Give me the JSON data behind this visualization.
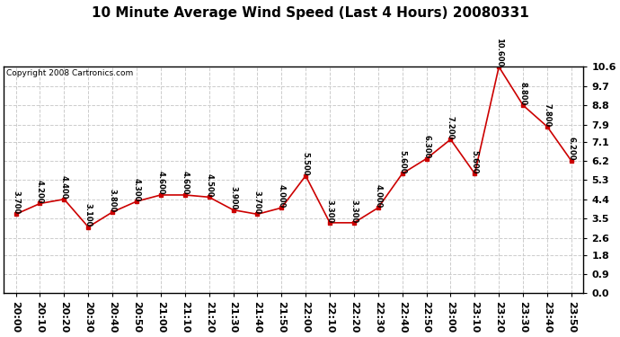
{
  "title": "10 Minute Average Wind Speed (Last 4 Hours) 20080331",
  "copyright": "Copyright 2008 Cartronics.com",
  "x_labels": [
    "20:00",
    "20:10",
    "20:20",
    "20:30",
    "20:40",
    "20:50",
    "21:00",
    "21:10",
    "21:20",
    "21:30",
    "21:40",
    "21:50",
    "22:00",
    "22:10",
    "22:20",
    "22:30",
    "22:40",
    "22:50",
    "23:00",
    "23:10",
    "23:20",
    "23:30",
    "23:40",
    "23:50"
  ],
  "y_values": [
    3.7,
    4.2,
    4.4,
    3.1,
    3.8,
    4.3,
    4.6,
    4.6,
    4.5,
    3.9,
    3.7,
    4.0,
    5.5,
    3.3,
    3.3,
    4.0,
    5.6,
    6.3,
    7.2,
    5.6,
    10.6,
    8.8,
    7.8,
    6.2
  ],
  "point_labels": [
    "3.700",
    "4.200",
    "4.400",
    "3.100",
    "3.800",
    "4.300",
    "4.600",
    "4.600",
    "4.500",
    "3.900",
    "3.700",
    "4.000",
    "5.500",
    "3.300",
    "3.300",
    "4.000",
    "5.600",
    "6.300",
    "7.200",
    "5.600",
    "10.600",
    "8.800",
    "7.800",
    "6.200"
  ],
  "line_color": "#cc0000",
  "marker_color": "#cc0000",
  "bg_color": "#ffffff",
  "grid_color": "#cccccc",
  "ylim": [
    0.0,
    10.6
  ],
  "yticks": [
    0.0,
    0.9,
    1.8,
    2.6,
    3.5,
    4.4,
    5.3,
    6.2,
    7.1,
    7.9,
    8.8,
    9.7,
    10.6
  ],
  "title_fontsize": 11,
  "copyright_fontsize": 6.5,
  "label_fontsize": 6.0,
  "tick_fontsize": 8
}
